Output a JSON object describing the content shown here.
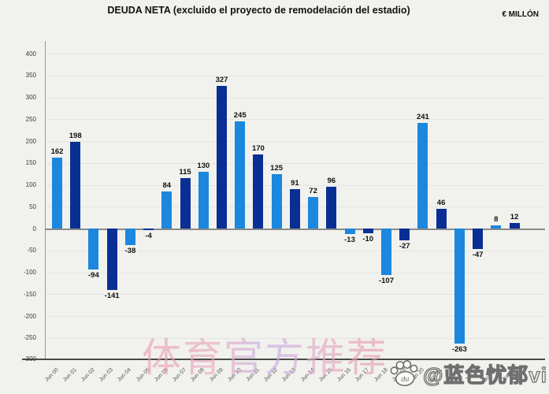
{
  "chart": {
    "title": "DEUDA NETA (excluido el proyecto de remodelación del estadio)",
    "unit": "€ MILLÓN"
  },
  "chart_data": {
    "type": "bar",
    "title": "DEUDA NETA (excluido el proyecto de remodelación del estadio)",
    "ylabel": "€ MILLÓN",
    "categories": [
      "Jun 00",
      "Jun 01",
      "Jun 02",
      "Jun 03",
      "Jun 04",
      "Jun 05",
      "Jun 06",
      "Jun 07",
      "Jun 08",
      "Jun 09",
      "Jun 10",
      "Jun 11",
      "Jun 12",
      "Jun 13",
      "Jun 14",
      "Jun 15",
      "Jun 16",
      "Jun 17",
      "Jun 18",
      "Jun 19",
      "Jun 20",
      "Jun 21",
      "Jun 22",
      "Jun 23",
      "Jun 24",
      "Jun 25"
    ],
    "values": [
      162,
      198,
      -94,
      -141,
      -38,
      -4,
      84,
      115,
      130,
      327,
      245,
      170,
      125,
      91,
      72,
      96,
      -13,
      -10,
      -107,
      -27,
      241,
      46,
      -263,
      -47,
      8,
      12
    ],
    "bar_color_even": "#1b87de",
    "bar_color_odd": "#0a2f94",
    "ylim": [
      -300,
      400
    ],
    "y_ticks": [
      400,
      350,
      300,
      250,
      200,
      150,
      100,
      50,
      0,
      -50,
      -100,
      -150,
      -200,
      -250,
      -300
    ],
    "grid": true,
    "legend": "none",
    "value_labels": "on"
  },
  "watermarks": {
    "center_text": "体育官方推荐",
    "signature_text": "@蓝色忧郁vi",
    "paw_inner_text": "du"
  },
  "colors": {
    "background": "#f1f1ee",
    "light_bar": "#1b87de",
    "dark_bar": "#0a2f94"
  }
}
